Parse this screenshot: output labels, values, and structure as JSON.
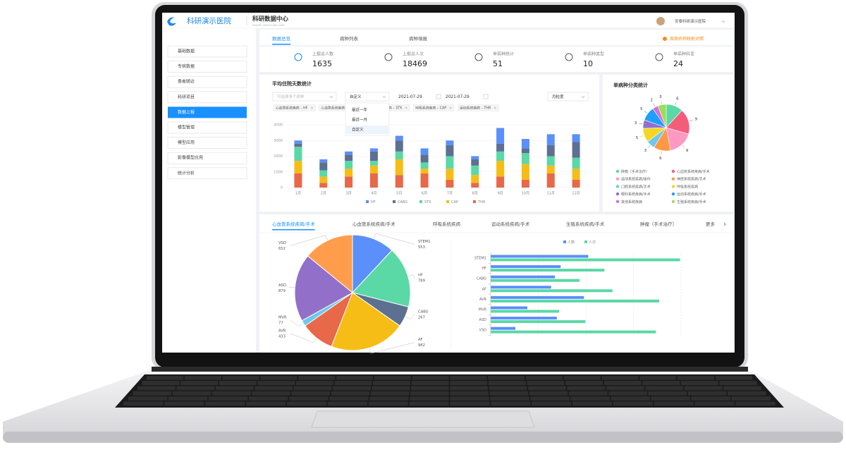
{
  "header": {
    "logo": "科研演示医院",
    "system": "科研数据中心",
    "subtitle": "Scientific research data center",
    "user": "安泰科研演示医院"
  },
  "sidebar": {
    "items": [
      "基础数据",
      "专病数据",
      "患者随访",
      "科研项目",
      "数据上报",
      "模型管理",
      "模型应用",
      "影像模型应用",
      "统计分析"
    ],
    "active": 4
  },
  "tabs": {
    "items": [
      "数据总览",
      "病种列表",
      "病种填报"
    ],
    "active": 0,
    "action": "疾病名称映射对照"
  },
  "stats": [
    {
      "label": "上报总人数",
      "value": 1635
    },
    {
      "label": "上报总人次",
      "value": 18469
    },
    {
      "label": "单病种统计",
      "value": 51
    },
    {
      "label": "单病种类型",
      "value": 10
    },
    {
      "label": "单病种科室",
      "value": 24
    }
  ],
  "filters": {
    "disease_placeholder": "可选择多个病种",
    "range": "自定义",
    "start": "2021-07-29",
    "end": "2021-07-29",
    "granularity": "月粒度"
  },
  "tags": [
    "心血管系统疾病 – HF",
    "心血管系统疾病 – CABG",
    "神经系统疾病 – STK",
    "呼吸系统疾病 – CAP",
    "运动系统疾病 – THR"
  ],
  "range_options": {
    "items": [
      "最近一年",
      "最近一月",
      "自定义"
    ],
    "selected": 2
  },
  "disease_tabs": {
    "items": [
      "心血管系统疾病/手术",
      "心血管系统疾病/手术",
      "呼吸系统疾病",
      "运动系统疾病/手术",
      "生殖系统疾病/手术",
      "肿瘤（手术治疗）"
    ],
    "active": 0,
    "more": "更多"
  },
  "chart_data": [
    {
      "type": "bar",
      "stacked": true,
      "title": "平均住院天数统计",
      "categories": [
        "1月",
        "2月",
        "3月",
        "4月",
        "5月",
        "6月",
        "7月",
        "8月",
        "9月",
        "10月",
        "11月",
        "12月"
      ],
      "series": [
        {
          "name": "HF",
          "color": "#5b8ff9",
          "values": [
            200,
            200,
            200,
            200,
            300,
            400,
            300,
            200,
            1000,
            600,
            700,
            500
          ]
        },
        {
          "name": "CABG",
          "color": "#5d7092",
          "values": [
            200,
            500,
            400,
            600,
            700,
            500,
            700,
            400,
            500,
            300,
            700,
            1000
          ]
        },
        {
          "name": "STK",
          "color": "#5ad8a6",
          "values": [
            900,
            400,
            500,
            300,
            500,
            400,
            800,
            600,
            600,
            700,
            600,
            700
          ]
        },
        {
          "name": "CAP",
          "color": "#f6bd16",
          "values": [
            800,
            400,
            500,
            500,
            1000,
            300,
            700,
            500,
            1000,
            1000,
            500,
            700
          ]
        },
        {
          "name": "THR",
          "color": "#e8684a",
          "values": [
            900,
            300,
            700,
            900,
            800,
            900,
            500,
            300,
            700,
            500,
            900,
            500
          ]
        }
      ],
      "ylim": [
        0,
        4000
      ],
      "yticks": [
        0,
        1000,
        2000,
        3000,
        4000
      ],
      "grid": true,
      "legend": "bottom"
    },
    {
      "type": "pie",
      "title": "单病种分类统计",
      "categories": [
        "肿瘤（手术治疗）",
        "心血管系统疾病/手术",
        "运动系统疾病/操作",
        "神经系统疾病/手术",
        "口腔系统疾病/手术",
        "呼吸系统疾病",
        "眼科系统疾病/手术",
        "运动系统疾病/手术",
        "其他系统疾病",
        "生殖系统疾病/手术"
      ],
      "values": [
        6,
        9,
        9,
        6,
        3,
        5,
        3,
        5,
        2,
        3
      ],
      "colors": [
        "#5ad8a6",
        "#f25e7a",
        "#ff99c3",
        "#ff9845",
        "#6dc8ec",
        "#f6d622",
        "#9270ca",
        "#1e9fff",
        "#d36fe0",
        "#a0dc5a"
      ],
      "legend": "bottom"
    },
    {
      "type": "pie",
      "categories": [
        "STEM1",
        "HF",
        "CABG",
        "AF",
        "AVR",
        "MVR",
        "ASD",
        "VSD"
      ],
      "values": [
        553,
        789,
        267,
        982,
        433,
        77,
        879,
        652
      ],
      "colors": [
        "#5b8ff9",
        "#5ad8a6",
        "#5d7092",
        "#f6bd16",
        "#e8684a",
        "#6dc8ec",
        "#9270ca",
        "#ff9d4d"
      ]
    },
    {
      "type": "bar",
      "orientation": "horizontal",
      "categories": [
        "STEM1",
        "HF",
        "CABG",
        "AF",
        "AVR",
        "MVR",
        "ASD",
        "VSD"
      ],
      "series": [
        {
          "name": "人数",
          "color": "#5b8ff9",
          "values": [
            2050,
            1470,
            1350,
            1270,
            1960,
            770,
            1390,
            520
          ]
        },
        {
          "name": "人次",
          "color": "#5ad8a6",
          "values": [
            3980,
            2390,
            1870,
            2560,
            3540,
            1440,
            1990,
            3470
          ]
        }
      ],
      "xlim": [
        0,
        4000
      ],
      "xticks": [
        0,
        1000,
        2000,
        3000,
        4000
      ],
      "grid": true,
      "legend": "top"
    }
  ]
}
